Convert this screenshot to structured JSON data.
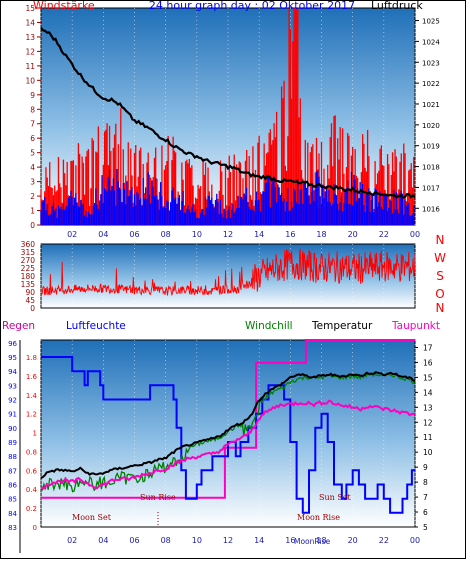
{
  "colors": {
    "red": "#ff0000",
    "blue": "#0000ff",
    "darkblue": "#1a1ab4",
    "black": "#000000",
    "green": "#008000",
    "magenta": "#ff00c0",
    "magenta_label": "#cc0099",
    "darkred": "#990000",
    "sky_top": "#1f6fb8",
    "sky_bottom": "#ffffff"
  },
  "header": {
    "windstaerke": "Windstärke",
    "title": "24 hour graph day : 02 Oktober 2017",
    "luftdruck": "Luftdruck"
  },
  "legend": {
    "regen": "Regen",
    "luftfeuchte": "Luftfeuchte",
    "windchill": "Windchill",
    "temperatur": "Temperatur",
    "taupunkt": "Taupunkt"
  },
  "compass": [
    "N",
    "W",
    "S",
    "O",
    "N"
  ],
  "annotations": {
    "sun_rise": "Sun Rise",
    "sun_set": "Sun Set",
    "moon_set": "Moon Set",
    "moon_rise": "Moon Rise",
    "moon_rise_axis": "MoonRise"
  },
  "chart_data": [
    {
      "type": "line",
      "name": "wind_and_pressure",
      "x_ticks": [
        "02",
        "04",
        "06",
        "08",
        "10",
        "12",
        "14",
        "16",
        "18",
        "20",
        "22",
        "00"
      ],
      "wind_ticks": [
        "0",
        "1",
        "2",
        "3",
        "4",
        "5",
        "6",
        "7",
        "8",
        "9",
        "10",
        "11",
        "12",
        "13",
        "14",
        "15"
      ],
      "pressure_ticks": [
        "1016",
        "1017",
        "1018",
        "1019",
        "1020",
        "1021",
        "1022",
        "1023",
        "1024",
        "1025"
      ],
      "wind_ylim": [
        0,
        15
      ],
      "pressure_ylim": [
        1015.2,
        1025.6
      ],
      "pressure_x": [
        0.0,
        0.5,
        1.0,
        1.5,
        2.0,
        2.5,
        3.0,
        3.5,
        4.0,
        4.5,
        5.0,
        5.5,
        6.0,
        6.5,
        7.0,
        7.5,
        8.0,
        8.5,
        9.0,
        9.5,
        10.0,
        10.5,
        11.0,
        11.5,
        12.0,
        12.5,
        13.0,
        13.5,
        14.0,
        14.5,
        15.0,
        15.5,
        16.0,
        16.5,
        17.0,
        17.5,
        18.0,
        18.5,
        19.0,
        19.5,
        20.0,
        20.5,
        21.0,
        21.5,
        22.0,
        22.5,
        23.0,
        23.5,
        24.0
      ],
      "pressure": [
        1024.6,
        1024.4,
        1024.0,
        1023.4,
        1022.9,
        1022.4,
        1022.0,
        1021.6,
        1021.3,
        1021.2,
        1021.0,
        1020.6,
        1020.2,
        1020.0,
        1019.8,
        1019.5,
        1019.3,
        1019.0,
        1018.8,
        1018.6,
        1018.5,
        1018.3,
        1018.2,
        1018.1,
        1018.0,
        1017.9,
        1017.7,
        1017.6,
        1017.5,
        1017.5,
        1017.4,
        1017.3,
        1017.3,
        1017.2,
        1017.2,
        1017.1,
        1017.1,
        1017.0,
        1017.0,
        1016.9,
        1016.9,
        1016.8,
        1016.8,
        1016.7,
        1016.7,
        1016.6,
        1016.6,
        1016.6,
        1016.6
      ],
      "wind_max_x": [
        0,
        1,
        2,
        3,
        4,
        5,
        6,
        7,
        8,
        9,
        10,
        11,
        12,
        13,
        14,
        15,
        16,
        17,
        18,
        19,
        20,
        21,
        22,
        23,
        24
      ],
      "wind_max": [
        4,
        5,
        5,
        6,
        7,
        8,
        6,
        5,
        7,
        5,
        5,
        4,
        5,
        5,
        6,
        7,
        15,
        7,
        6,
        8,
        6,
        7,
        5,
        6,
        5
      ],
      "wind_avg_x": [
        0,
        1,
        2,
        3,
        4,
        5,
        6,
        7,
        8,
        9,
        10,
        11,
        12,
        13,
        14,
        15,
        16,
        17,
        18,
        19,
        20,
        21,
        22,
        23,
        24
      ],
      "wind_avg": [
        2,
        1,
        2,
        1,
        3,
        3,
        2,
        3,
        2,
        2,
        1,
        2,
        1,
        2,
        2,
        3,
        2,
        3,
        3,
        2,
        3,
        2,
        2,
        2,
        1
      ]
    },
    {
      "type": "line",
      "name": "wind_direction",
      "y_ticks": [
        "0",
        "45",
        "90",
        "135",
        "180",
        "225",
        "270",
        "315",
        "360"
      ],
      "ylim": [
        0,
        360
      ],
      "x": [
        0,
        1,
        2,
        3,
        4,
        5,
        6,
        7,
        8,
        9,
        10,
        11,
        12,
        13,
        14,
        15,
        16,
        17,
        18,
        19,
        20,
        21,
        22,
        23,
        24
      ],
      "direction": [
        95,
        100,
        105,
        110,
        110,
        105,
        100,
        100,
        95,
        100,
        100,
        95,
        105,
        110,
        180,
        220,
        250,
        240,
        225,
        230,
        220,
        225,
        235,
        230,
        230
      ]
    },
    {
      "type": "line",
      "name": "temperature_humidity_rain",
      "x_ticks": [
        "02",
        "04",
        "06",
        "08",
        "10",
        "12",
        "14",
        "16",
        "18",
        "20",
        "22",
        "00"
      ],
      "rain_ticks": [
        "0",
        "0.2",
        "0.4",
        "0.6",
        "0.8",
        "1",
        "1.2",
        "1.4",
        "1.6",
        "1.8"
      ],
      "humidity_ticks": [
        "83",
        "84",
        "85",
        "86",
        "87",
        "88",
        "89",
        "90",
        "91",
        "92",
        "93",
        "94",
        "95",
        "96"
      ],
      "temp_ticks": [
        "5",
        "6",
        "7",
        "8",
        "9",
        "10",
        "11",
        "12",
        "13",
        "14",
        "15",
        "16",
        "17"
      ],
      "humidity_ylim": [
        83,
        96.2
      ],
      "temp_ylim": [
        5,
        17.5
      ],
      "rain_ylim": [
        0,
        1.98
      ],
      "humidity_x": [
        0,
        0.3,
        1.0,
        2.0,
        2.8,
        3.0,
        3.8,
        4.0,
        4.5,
        5.0,
        6.0,
        7.0,
        8.0,
        8.5,
        8.7,
        9.0,
        9.3,
        9.8,
        10.0,
        10.3,
        11.0,
        12.0,
        12.5,
        12.8,
        13.3,
        13.8,
        14.2,
        14.6,
        15.2,
        15.6,
        16.0,
        16.4,
        16.8,
        17.2,
        17.6,
        18.0,
        18.4,
        18.8,
        19.3,
        19.6,
        20.0,
        20.4,
        20.8,
        21.2,
        21.6,
        22.0,
        22.4,
        22.8,
        23.2,
        23.5,
        23.8,
        24.0
      ],
      "humidity": [
        95,
        95,
        95,
        94,
        93,
        94,
        93,
        92,
        92,
        92,
        92,
        93,
        93,
        92,
        90,
        87,
        85,
        85,
        86,
        87,
        88,
        89,
        88,
        89,
        90,
        91,
        92,
        93,
        93,
        92,
        89,
        85,
        84,
        87,
        90,
        91,
        89,
        86,
        85,
        86,
        87,
        86,
        85,
        85,
        86,
        85,
        84,
        84,
        85,
        86,
        87,
        87
      ],
      "temp_x": [
        0,
        0.5,
        1.0,
        1.5,
        2.0,
        2.5,
        3.0,
        3.5,
        4.0,
        4.5,
        5.0,
        5.5,
        6.0,
        6.5,
        7.0,
        7.5,
        8.0,
        8.5,
        9.0,
        9.5,
        10.0,
        10.5,
        11.0,
        11.5,
        12.0,
        12.5,
        13.0,
        13.5,
        14.0,
        14.5,
        15.0,
        15.5,
        16.0,
        16.5,
        17.0,
        17.5,
        18.0,
        18.5,
        19.0,
        19.5,
        20.0,
        20.5,
        21.0,
        21.5,
        22.0,
        22.5,
        23.0,
        23.5,
        24.0
      ],
      "temperature": [
        8.3,
        8.7,
        8.8,
        8.8,
        8.7,
        8.9,
        8.6,
        8.5,
        8.6,
        8.8,
        8.9,
        9.0,
        9.1,
        9.2,
        9.3,
        9.5,
        9.6,
        10.0,
        10.3,
        10.5,
        10.6,
        10.8,
        10.9,
        11.1,
        11.5,
        11.8,
        12.0,
        12.5,
        13.5,
        14.0,
        14.3,
        14.6,
        15.0,
        15.2,
        15.1,
        15.0,
        15.1,
        15.2,
        15.1,
        15.1,
        15.2,
        15.1,
        15.3,
        15.3,
        15.2,
        15.3,
        15.1,
        15.0,
        14.8
      ],
      "windchill": [
        7.8,
        8.3,
        8.4,
        8.4,
        8.2,
        8.5,
        8.4,
        8.3,
        8.4,
        8.5,
        8.7,
        8.7,
        8.8,
        8.9,
        9.0,
        9.3,
        9.5,
        9.8,
        10.1,
        10.3,
        10.5,
        10.7,
        10.8,
        11.0,
        11.4,
        11.7,
        11.9,
        12.3,
        13.2,
        13.7,
        14.1,
        14.3,
        14.7,
        14.9,
        15.0,
        15.0,
        15.0,
        15.1,
        15.0,
        15.0,
        15.1,
        15.0,
        15.2,
        15.2,
        15.1,
        15.2,
        15.0,
        14.9,
        14.7
      ],
      "dewpoint": [
        7.6,
        7.9,
        8.0,
        8.1,
        8.0,
        8.2,
        7.9,
        7.7,
        7.8,
        8.1,
        8.2,
        8.2,
        8.3,
        8.5,
        8.6,
        8.8,
        8.9,
        9.2,
        9.4,
        9.6,
        9.7,
        9.8,
        9.9,
        10.1,
        10.5,
        10.8,
        11.0,
        11.4,
        12.3,
        12.7,
        13.0,
        13.2,
        13.2,
        13.3,
        13.3,
        13.2,
        13.3,
        13.4,
        13.2,
        13.1,
        13.0,
        12.9,
        13.1,
        13.0,
        12.9,
        12.8,
        12.7,
        12.6,
        12.5
      ],
      "rain_x": [
        0,
        10,
        11.8,
        11.8,
        13.8,
        13.8,
        17.0,
        17.0,
        24
      ],
      "rain": [
        0.31,
        0.31,
        0.31,
        0.84,
        0.84,
        1.74,
        1.74,
        1.98,
        1.98
      ]
    }
  ]
}
